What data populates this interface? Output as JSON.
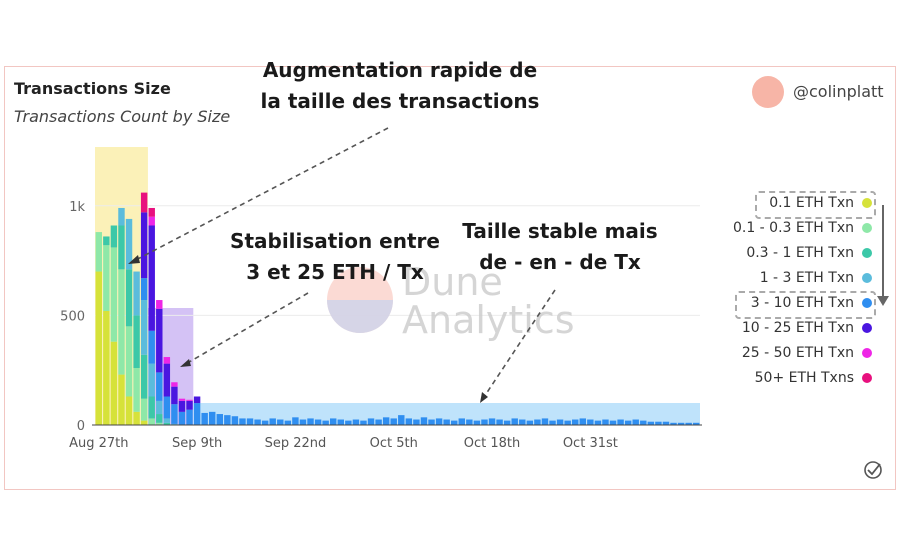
{
  "header": {
    "title": "Transactions Size",
    "subtitle": "Transactions Count by Size",
    "author": "@colinplatt"
  },
  "annotations": {
    "rapid_growth": [
      "Augmentation rapide de",
      "la taille des transactions"
    ],
    "stabilization": [
      "Stabilisation entre",
      "3 et 25 ETH / Tx"
    ],
    "stable_size": [
      "Taille stable mais",
      "de - en - de Tx"
    ]
  },
  "watermark": [
    "Dune",
    "Analytics"
  ],
  "colors": {
    "highlight_yellow": "#fbf1b8",
    "highlight_purple": "#d4c2f5",
    "highlight_blue": "#bfe3fb"
  },
  "chart_data": {
    "type": "bar",
    "stacked": true,
    "xlabel": "",
    "ylabel": "",
    "ylim": [
      0,
      1300
    ],
    "yticks": [
      0,
      500,
      1000
    ],
    "ytick_labels": [
      "0",
      "500",
      "1k"
    ],
    "xtick_labels": [
      {
        "label": "Aug 27th",
        "day": 0
      },
      {
        "label": "Sep 9th",
        "day": 13
      },
      {
        "label": "Sep 22nd",
        "day": 26
      },
      {
        "label": "Oct 5th",
        "day": 39
      },
      {
        "label": "Oct 18th",
        "day": 52
      },
      {
        "label": "Oct 31st",
        "day": 65
      }
    ],
    "grid": true,
    "legend_position": "right",
    "series": [
      {
        "name": "0.1 ETH Txn",
        "color": "#d6e23a",
        "values": [
          700,
          520,
          380,
          230,
          130,
          60,
          20,
          0,
          0,
          0,
          0,
          0,
          0,
          0,
          0,
          0,
          0,
          0,
          0,
          0,
          0,
          0,
          0,
          0,
          0,
          0,
          0,
          0,
          0,
          0,
          0,
          0,
          0,
          0,
          0,
          0,
          0,
          0,
          0,
          0,
          0,
          0,
          0,
          0,
          0,
          0,
          0,
          0,
          0,
          0,
          0,
          0,
          0,
          0,
          0,
          0,
          0,
          0,
          0,
          0,
          0,
          0,
          0,
          0,
          0,
          0,
          0,
          0,
          0,
          0,
          0,
          0,
          0,
          0,
          0,
          0,
          0,
          0,
          0,
          0
        ]
      },
      {
        "name": "0.1 - 0.3 ETH Txn",
        "color": "#8ee8a8",
        "values": [
          180,
          300,
          430,
          480,
          320,
          200,
          100,
          30,
          10,
          0,
          0,
          0,
          0,
          0,
          0,
          0,
          0,
          0,
          0,
          0,
          0,
          0,
          0,
          0,
          0,
          0,
          0,
          0,
          0,
          0,
          0,
          0,
          0,
          0,
          0,
          0,
          0,
          0,
          0,
          0,
          0,
          0,
          0,
          0,
          0,
          0,
          0,
          0,
          0,
          0,
          0,
          0,
          0,
          0,
          0,
          0,
          0,
          0,
          0,
          0,
          0,
          0,
          0,
          0,
          0,
          0,
          0,
          0,
          0,
          0,
          0,
          0,
          0,
          0,
          0,
          0,
          0,
          0,
          0,
          0
        ]
      },
      {
        "name": "0.3 - 1 ETH Txn",
        "color": "#3cc8a8",
        "values": [
          0,
          40,
          100,
          200,
          260,
          240,
          200,
          100,
          40,
          10,
          0,
          0,
          0,
          0,
          0,
          0,
          0,
          0,
          0,
          0,
          0,
          0,
          0,
          0,
          0,
          0,
          0,
          0,
          0,
          0,
          0,
          0,
          0,
          0,
          0,
          0,
          0,
          0,
          0,
          0,
          0,
          0,
          0,
          0,
          0,
          0,
          0,
          0,
          0,
          0,
          0,
          0,
          0,
          0,
          0,
          0,
          0,
          0,
          0,
          0,
          0,
          0,
          0,
          0,
          0,
          0,
          0,
          0,
          0,
          0,
          0,
          0,
          0,
          0,
          0,
          0,
          0,
          0,
          0,
          0
        ]
      },
      {
        "name": "1 - 3 ETH Txn",
        "color": "#5bbcdc",
        "values": [
          0,
          0,
          0,
          80,
          230,
          200,
          250,
          150,
          60,
          20,
          5,
          0,
          0,
          0,
          0,
          0,
          0,
          0,
          0,
          0,
          0,
          0,
          0,
          0,
          0,
          0,
          0,
          0,
          0,
          0,
          0,
          0,
          0,
          0,
          0,
          0,
          0,
          0,
          0,
          0,
          0,
          0,
          0,
          0,
          0,
          0,
          0,
          0,
          0,
          0,
          0,
          0,
          0,
          0,
          0,
          0,
          0,
          0,
          0,
          0,
          0,
          0,
          0,
          0,
          0,
          0,
          0,
          0,
          0,
          0,
          0,
          0,
          0,
          0,
          0,
          0,
          0,
          0,
          0,
          0
        ]
      },
      {
        "name": "3 - 10 ETH Txn",
        "color": "#2f8ef0",
        "values": [
          0,
          0,
          0,
          0,
          0,
          0,
          100,
          150,
          130,
          100,
          90,
          60,
          70,
          100,
          55,
          60,
          50,
          45,
          40,
          30,
          30,
          25,
          20,
          30,
          25,
          20,
          35,
          25,
          30,
          25,
          20,
          30,
          25,
          20,
          25,
          20,
          30,
          25,
          35,
          30,
          45,
          30,
          25,
          35,
          25,
          30,
          25,
          20,
          30,
          25,
          20,
          25,
          30,
          25,
          20,
          30,
          25,
          20,
          25,
          30,
          20,
          25,
          20,
          25,
          30,
          25,
          20,
          25,
          20,
          25,
          20,
          25,
          20,
          15,
          15,
          15,
          10,
          10,
          10,
          10
        ]
      },
      {
        "name": "10 - 25 ETH Txn",
        "color": "#4a16e0",
        "values": [
          0,
          0,
          0,
          0,
          0,
          0,
          300,
          480,
          290,
          150,
          80,
          50,
          40,
          30,
          0,
          0,
          0,
          0,
          0,
          0,
          0,
          0,
          0,
          0,
          0,
          0,
          0,
          0,
          0,
          0,
          0,
          0,
          0,
          0,
          0,
          0,
          0,
          0,
          0,
          0,
          0,
          0,
          0,
          0,
          0,
          0,
          0,
          0,
          0,
          0,
          0,
          0,
          0,
          0,
          0,
          0,
          0,
          0,
          0,
          0,
          0,
          0,
          0,
          0,
          0,
          0,
          0,
          0,
          0,
          0,
          0,
          0,
          0,
          0,
          0,
          0,
          0,
          0,
          0,
          0
        ]
      },
      {
        "name": "25 - 50 ETH Txn",
        "color": "#ee26e6",
        "values": [
          0,
          0,
          0,
          0,
          0,
          0,
          0,
          40,
          40,
          30,
          20,
          10,
          5,
          0,
          0,
          0,
          0,
          0,
          0,
          0,
          0,
          0,
          0,
          0,
          0,
          0,
          0,
          0,
          0,
          0,
          0,
          0,
          0,
          0,
          0,
          0,
          0,
          0,
          0,
          0,
          0,
          0,
          0,
          0,
          0,
          0,
          0,
          0,
          0,
          0,
          0,
          0,
          0,
          0,
          0,
          0,
          0,
          0,
          0,
          0,
          0,
          0,
          0,
          0,
          0,
          0,
          0,
          0,
          0,
          0,
          0,
          0,
          0,
          0,
          0,
          0,
          0,
          0,
          0,
          0
        ]
      },
      {
        "name": "50+ ETH Txns",
        "color": "#e8107e",
        "values": [
          0,
          0,
          0,
          0,
          0,
          0,
          90,
          40,
          0,
          0,
          0,
          0,
          0,
          0,
          0,
          0,
          0,
          0,
          0,
          0,
          0,
          0,
          0,
          0,
          0,
          0,
          0,
          0,
          0,
          0,
          0,
          0,
          0,
          0,
          0,
          0,
          0,
          0,
          0,
          0,
          0,
          0,
          0,
          0,
          0,
          0,
          0,
          0,
          0,
          0,
          0,
          0,
          0,
          0,
          0,
          0,
          0,
          0,
          0,
          0,
          0,
          0,
          0,
          0,
          0,
          0,
          0,
          0,
          0,
          0,
          0,
          0,
          0,
          0,
          0,
          0,
          0,
          0,
          0,
          0
        ]
      }
    ]
  }
}
